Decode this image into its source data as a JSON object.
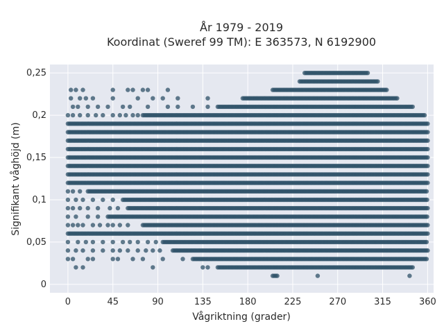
{
  "chart_data": {
    "type": "scatter",
    "title_line1": "År 1979 - 2019",
    "title_line2": "Koordinat (Sweref 99 TM): E 363573, N 6192900",
    "xlabel": "Vågriktning (grader)",
    "ylabel": "Signifikant våghöjd (m)",
    "xlim": [
      -18,
      366
    ],
    "ylim": [
      -0.01,
      0.26
    ],
    "x_ticks": [
      0,
      45,
      90,
      135,
      180,
      225,
      270,
      315,
      360
    ],
    "x_tick_labels": [
      "0",
      "45",
      "90",
      "135",
      "180",
      "225",
      "270",
      "315",
      "360"
    ],
    "y_ticks": [
      0,
      0.05,
      0.1,
      0.15,
      0.2,
      0.25
    ],
    "y_tick_labels": [
      "0",
      "0,05",
      "0,1",
      "0,15",
      "0,2",
      "0,25"
    ],
    "grid": true,
    "series": [
      {
        "color": "#2f5168",
        "bands": [
          {
            "y": 0.25,
            "from": 237,
            "to": 300
          },
          {
            "y": 0.24,
            "from": 232,
            "to": 310
          },
          {
            "y": 0.23,
            "from": 205,
            "to": 320,
            "stray": [
              3,
              8,
              15,
              45,
              60,
              65,
              75,
              80,
              100
            ]
          },
          {
            "y": 0.22,
            "from": 175,
            "to": 330,
            "stray": [
              3,
              12,
              18,
              25,
              45,
              70,
              85,
              95,
              110,
              140
            ]
          },
          {
            "y": 0.21,
            "from": 150,
            "to": 345,
            "stray": [
              5,
              10,
              20,
              30,
              40,
              55,
              62,
              80,
              100,
              110,
              125,
              140
            ]
          },
          {
            "y": 0.2,
            "from": 75,
            "to": 358,
            "stray": [
              0,
              5,
              12,
              20,
              28,
              35,
              45,
              52,
              58,
              65,
              70
            ]
          },
          {
            "y": 0.19,
            "from": 0,
            "to": 360
          },
          {
            "y": 0.18,
            "from": 0,
            "to": 360
          },
          {
            "y": 0.17,
            "from": 0,
            "to": 360
          },
          {
            "y": 0.16,
            "from": 0,
            "to": 360
          },
          {
            "y": 0.15,
            "from": 0,
            "to": 360
          },
          {
            "y": 0.14,
            "from": 0,
            "to": 360
          },
          {
            "y": 0.13,
            "from": 0,
            "to": 360
          },
          {
            "y": 0.12,
            "from": 0,
            "to": 360
          },
          {
            "y": 0.11,
            "from": 20,
            "to": 360,
            "stray": [
              0,
              5,
              12
            ]
          },
          {
            "y": 0.1,
            "from": 55,
            "to": 360,
            "stray": [
              0,
              8,
              15,
              25,
              35,
              45
            ]
          },
          {
            "y": 0.09,
            "from": 60,
            "to": 360,
            "stray": [
              0,
              5,
              12,
              20,
              30,
              42,
              50
            ]
          },
          {
            "y": 0.08,
            "from": 40,
            "to": 360,
            "stray": [
              0,
              8,
              20,
              30
            ]
          },
          {
            "y": 0.07,
            "from": 75,
            "to": 360,
            "stray": [
              0,
              5,
              10,
              15,
              25,
              32,
              40,
              45,
              52,
              60
            ]
          },
          {
            "y": 0.06,
            "from": 0,
            "to": 360
          },
          {
            "y": 0.05,
            "from": 95,
            "to": 360,
            "stray": [
              0,
              10,
              18,
              25,
              35,
              45,
              55,
              62,
              70,
              80,
              88
            ]
          },
          {
            "y": 0.04,
            "from": 105,
            "to": 360,
            "stray": [
              0,
              8,
              15,
              25,
              35,
              45,
              52,
              60,
              70,
              78,
              85,
              92
            ]
          },
          {
            "y": 0.03,
            "from": 125,
            "to": 360,
            "stray": [
              0,
              5,
              20,
              25,
              45,
              50,
              65,
              75,
              95,
              115
            ]
          },
          {
            "y": 0.02,
            "from": 150,
            "to": 345,
            "stray": [
              8,
              15,
              85,
              135,
              140
            ]
          },
          {
            "y": 0.01,
            "from": 205,
            "to": 210,
            "stray": [
              250,
              342
            ]
          }
        ]
      }
    ]
  }
}
